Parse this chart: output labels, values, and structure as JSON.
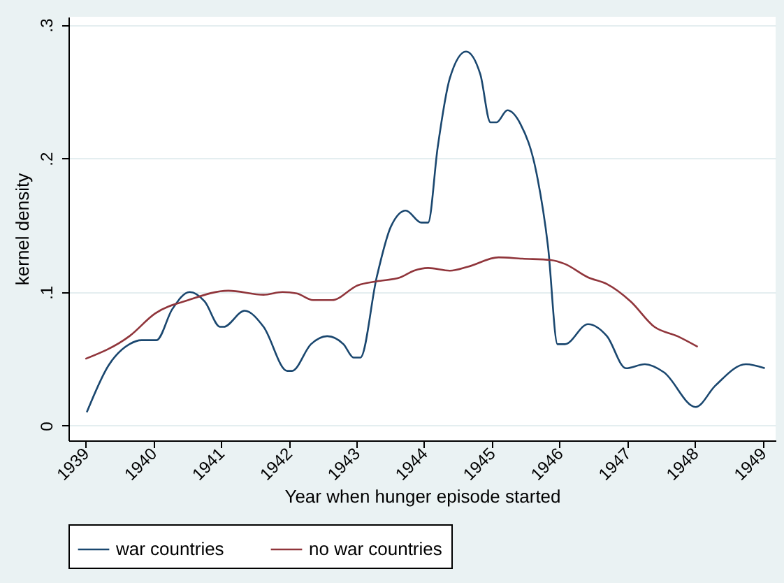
{
  "chart_data": {
    "type": "line",
    "xlabel": "Year when hunger episode started",
    "ylabel": "kernel density",
    "xlim": [
      1938.75,
      1949.19
    ],
    "ylim": [
      -0.011,
      0.306
    ],
    "xticks": [
      1939,
      1940,
      1941,
      1942,
      1943,
      1944,
      1945,
      1946,
      1947,
      1948,
      1949
    ],
    "yticks": [
      0,
      {
        "value": 0.1,
        "label": ".1"
      },
      {
        "value": 0.2,
        "label": ".2"
      },
      {
        "value": 0.3,
        "label": ".3"
      }
    ],
    "grid": "y",
    "legend": "bottom",
    "line_style": "solid",
    "marker": "none",
    "series": [
      {
        "name": "war countries",
        "color": "#1a476f",
        "x": [
          1939.02,
          1939.34,
          1939.65,
          1939.83,
          1940.05,
          1940.28,
          1940.54,
          1940.76,
          1940.99,
          1941.04,
          1941.35,
          1941.63,
          1941.98,
          1942.05,
          1942.33,
          1942.57,
          1942.81,
          1942.96,
          1943.06,
          1943.3,
          1943.51,
          1943.73,
          1943.96,
          1944.06,
          1944.2,
          1944.38,
          1944.62,
          1944.83,
          1944.98,
          1945.07,
          1945.23,
          1945.42,
          1945.66,
          1945.83,
          1945.97,
          1946.08,
          1946.42,
          1946.7,
          1946.98,
          1947.26,
          1947.54,
          1948.01,
          1948.3,
          1948.75,
          1949.03
        ],
        "values": [
          0.01,
          0.045,
          0.061,
          0.064,
          0.064,
          0.087,
          0.1,
          0.093,
          0.074,
          0.074,
          0.086,
          0.074,
          0.041,
          0.041,
          0.061,
          0.067,
          0.061,
          0.051,
          0.051,
          0.111,
          0.149,
          0.161,
          0.152,
          0.152,
          0.208,
          0.26,
          0.28,
          0.263,
          0.227,
          0.227,
          0.236,
          0.226,
          0.189,
          0.134,
          0.061,
          0.061,
          0.076,
          0.067,
          0.043,
          0.046,
          0.04,
          0.014,
          0.03,
          0.046,
          0.043
        ]
      },
      {
        "name": "no war countries",
        "color": "#90353b",
        "x": [
          1939.0,
          1939.65,
          1940.03,
          1940.52,
          1941.11,
          1941.63,
          1941.91,
          1942.12,
          1942.36,
          1942.64,
          1943.02,
          1943.3,
          1943.65,
          1943.85,
          1944.06,
          1944.38,
          1944.65,
          1945.1,
          1945.45,
          1945.87,
          1946.08,
          1946.42,
          1946.7,
          1947.05,
          1947.4,
          1947.74,
          1948.04
        ],
        "values": [
          0.05,
          0.067,
          0.084,
          0.094,
          0.101,
          0.098,
          0.1,
          0.099,
          0.094,
          0.094,
          0.105,
          0.108,
          0.111,
          0.116,
          0.118,
          0.116,
          0.119,
          0.126,
          0.125,
          0.124,
          0.121,
          0.111,
          0.106,
          0.093,
          0.074,
          0.067,
          0.059
        ]
      }
    ]
  }
}
